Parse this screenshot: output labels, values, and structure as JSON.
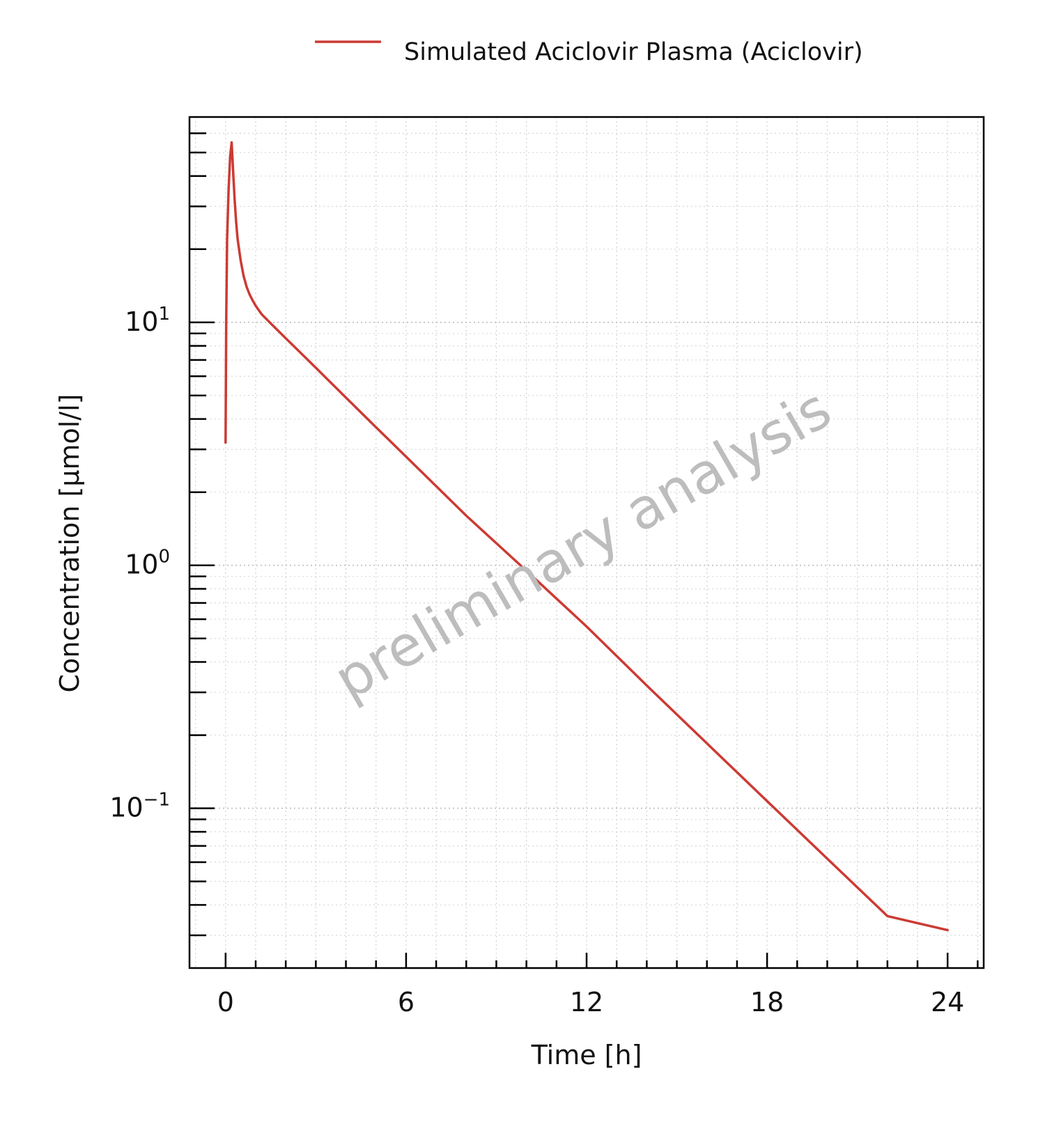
{
  "chart_data": {
    "type": "line",
    "title": "",
    "xlabel": "Time [h]",
    "ylabel": "Concentration [µmol/l]",
    "x_scale": "linear",
    "y_scale": "log",
    "xlim": [
      -1.2,
      25.2
    ],
    "ylim": [
      0.022,
      70
    ],
    "x_ticks": [
      0,
      6,
      12,
      18,
      24
    ],
    "y_ticks": [
      {
        "value": 10,
        "base": "10",
        "exp": "1"
      },
      {
        "value": 1,
        "base": "10",
        "exp": "0"
      },
      {
        "value": 0.1,
        "base": "10",
        "exp": "−1"
      }
    ],
    "grid": true,
    "legend": {
      "placement": "top-center"
    },
    "watermark": "preliminary analysis",
    "series": [
      {
        "name": "Simulated Aciclovir Plasma (Aciclovir)",
        "color": "#cc3a33",
        "x": [
          0,
          0.02,
          0.05,
          0.1,
          0.15,
          0.2,
          0.25,
          0.3,
          0.35,
          0.4,
          0.5,
          0.6,
          0.7,
          0.8,
          0.9,
          1.0,
          1.2,
          1.5,
          2,
          3,
          4,
          5,
          6,
          8,
          10,
          12,
          14,
          16,
          18,
          20,
          22,
          24
        ],
        "y": [
          3.2,
          10,
          22,
          35,
          48,
          55,
          42,
          32,
          26,
          22,
          18,
          15.5,
          14,
          13,
          12.3,
          11.7,
          10.8,
          9.9,
          8.6,
          6.5,
          4.9,
          3.7,
          2.8,
          1.6,
          0.95,
          0.56,
          0.32,
          0.185,
          0.107,
          0.062,
          0.036,
          0.0315
        ]
      }
    ]
  }
}
